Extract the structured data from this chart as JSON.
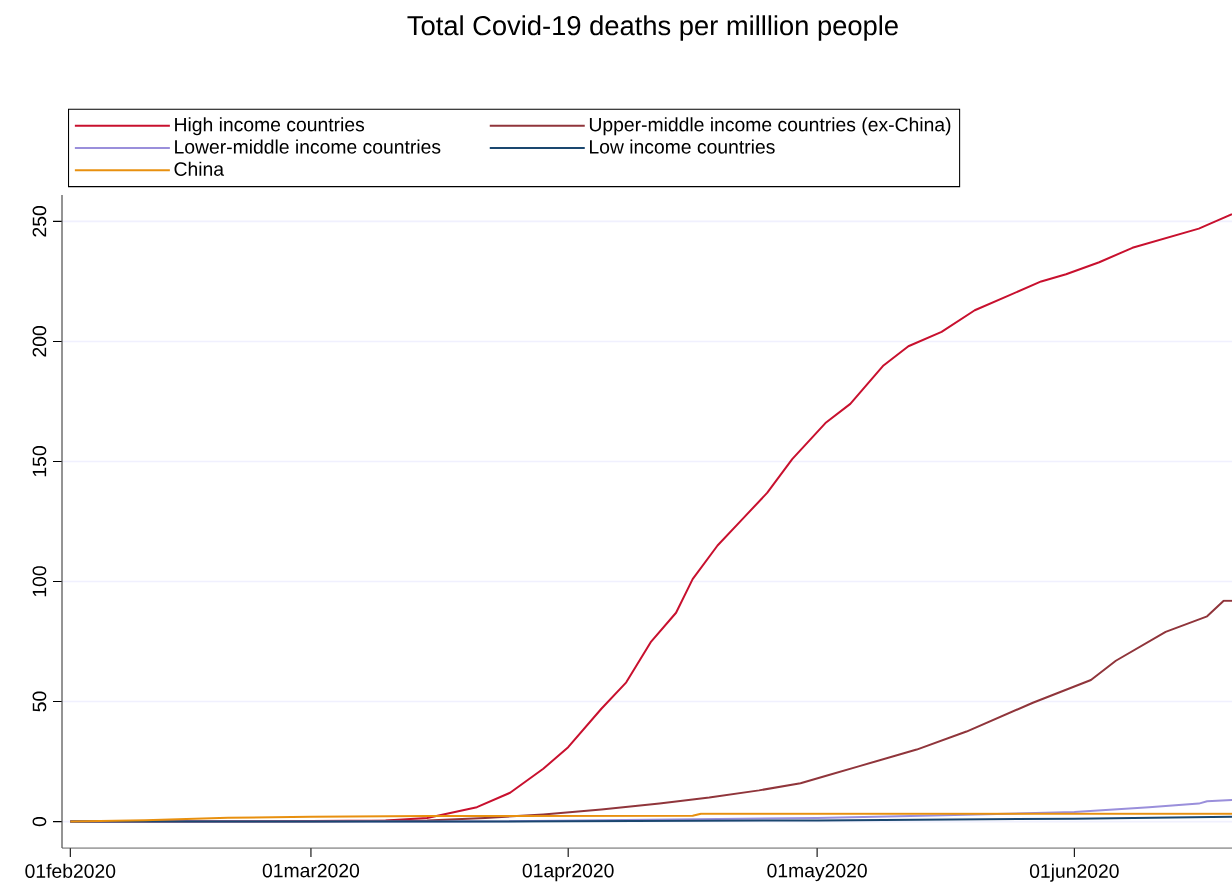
{
  "chart_data": {
    "type": "line",
    "title": "Total Covid-19 deaths per milllion people",
    "xlim": [
      "2020-01-31",
      "2020-06-20"
    ],
    "ylim": [
      -11,
      261
    ],
    "xticks": [
      {
        "value": "2020-02-01",
        "label": "01feb2020"
      },
      {
        "value": "2020-03-01",
        "label": "01mar2020"
      },
      {
        "value": "2020-04-01",
        "label": "01apr2020"
      },
      {
        "value": "2020-05-01",
        "label": "01may2020"
      },
      {
        "value": "2020-06-01",
        "label": "01jun2020"
      }
    ],
    "yticks": [
      0,
      50,
      100,
      150,
      200,
      250
    ],
    "grid": "y",
    "legend": "top",
    "marker": "none",
    "line_style": "solid",
    "series": [
      {
        "name": "High income countries",
        "color": "#c8102e",
        "x": [
          "2020-02-01",
          "2020-03-01",
          "2020-03-10",
          "2020-03-15",
          "2020-03-21",
          "2020-03-25",
          "2020-03-29",
          "2020-04-01",
          "2020-04-05",
          "2020-04-08",
          "2020-04-11",
          "2020-04-14",
          "2020-04-16",
          "2020-04-19",
          "2020-04-22",
          "2020-04-25",
          "2020-04-28",
          "2020-05-02",
          "2020-05-05",
          "2020-05-09",
          "2020-05-12",
          "2020-05-16",
          "2020-05-20",
          "2020-05-24",
          "2020-05-28",
          "2020-05-31",
          "2020-06-04",
          "2020-06-08",
          "2020-06-12",
          "2020-06-16",
          "2020-06-18",
          "2020-06-20"
        ],
        "values": [
          0,
          0.2,
          0.5,
          1.5,
          6,
          12,
          22,
          31,
          47,
          58,
          75,
          87,
          101,
          115,
          126,
          137,
          151,
          166,
          174,
          190,
          198,
          204,
          213,
          219,
          225,
          228,
          233,
          239,
          243,
          247,
          250,
          253
        ]
      },
      {
        "name": "Upper-middle income countries (ex-China)",
        "color": "#90353b",
        "x": [
          "2020-02-01",
          "2020-03-01",
          "2020-03-15",
          "2020-03-22",
          "2020-03-29",
          "2020-04-05",
          "2020-04-12",
          "2020-04-18",
          "2020-04-24",
          "2020-04-29",
          "2020-05-02",
          "2020-05-06",
          "2020-05-13",
          "2020-05-19",
          "2020-05-27",
          "2020-06-03",
          "2020-06-06",
          "2020-06-12",
          "2020-06-17",
          "2020-06-19",
          "2020-06-20"
        ],
        "values": [
          0,
          0,
          0.5,
          1.5,
          3,
          5,
          7.5,
          10,
          13,
          16,
          19,
          23,
          30,
          37.5,
          49.5,
          59,
          67,
          79,
          85.5,
          92,
          92
        ]
      },
      {
        "name": "Lower-middle income countries",
        "color": "#9a8fdb",
        "x": [
          "2020-02-01",
          "2020-03-20",
          "2020-04-01",
          "2020-05-01",
          "2020-05-15",
          "2020-06-01",
          "2020-06-10",
          "2020-06-16",
          "2020-06-17",
          "2020-06-20"
        ],
        "values": [
          0,
          0,
          null,
          1.5,
          2.5,
          4,
          6,
          7.5,
          8.5,
          9
        ]
      },
      {
        "name": "Low income countries",
        "color": "#1a476f",
        "x": [
          "2020-02-01",
          "2020-04-01",
          "2020-05-01",
          "2020-06-01",
          "2020-06-20"
        ],
        "values": [
          0,
          0.1,
          0.5,
          1.2,
          2
        ]
      },
      {
        "name": "China",
        "color": "#e8900f",
        "x": [
          "2020-02-01",
          "2020-02-10",
          "2020-02-20",
          "2020-03-01",
          "2020-03-15",
          "2020-04-16",
          "2020-04-17",
          "2020-06-20"
        ],
        "values": [
          0,
          0.6,
          1.6,
          2.0,
          2.3,
          2.4,
          3.3,
          3.3
        ]
      }
    ]
  }
}
